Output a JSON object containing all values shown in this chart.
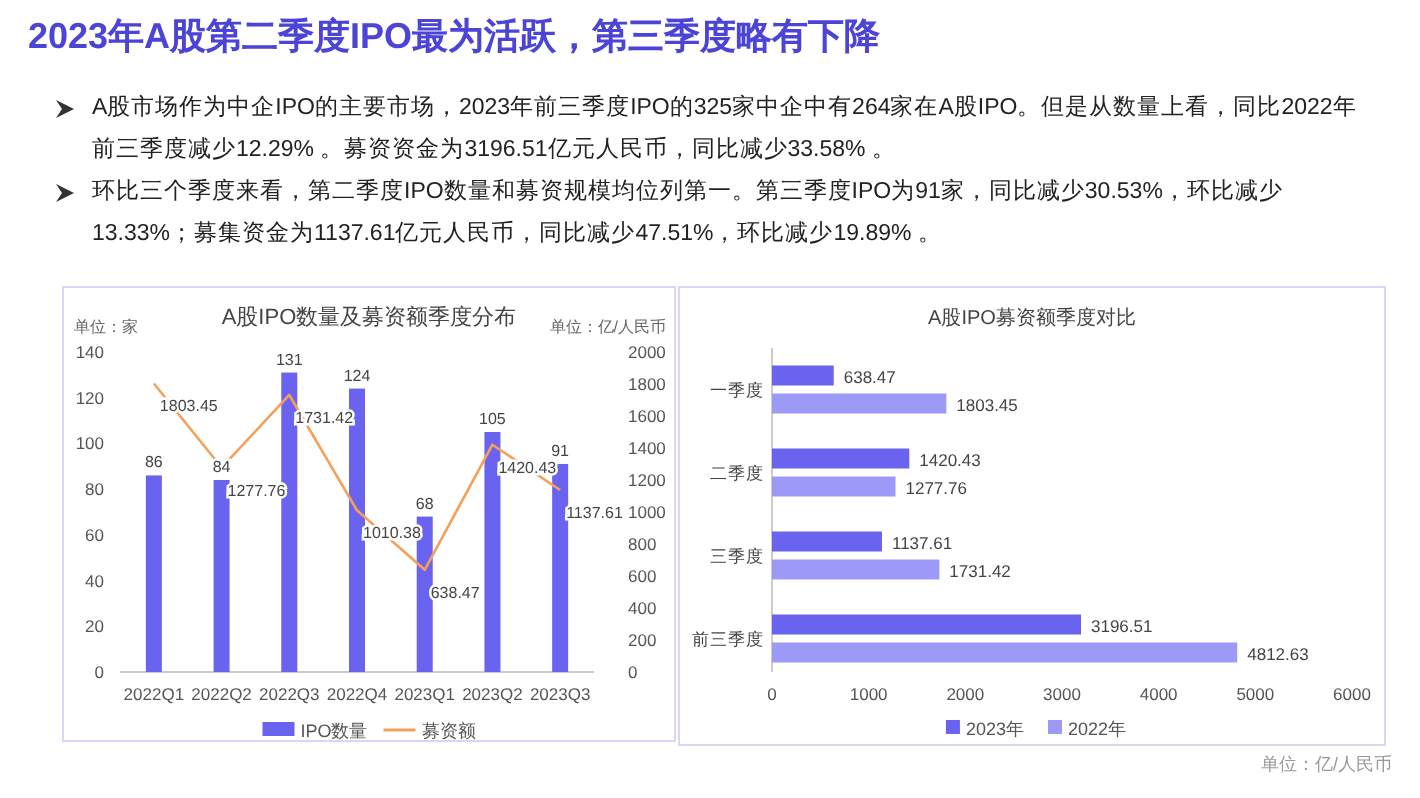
{
  "chart_data": [
    {
      "type": "other",
      "title": "2023年A股第二季度IPO最为活跃，第三季度略有下降",
      "annotations": [
        "A股市场作为中企IPO的主要市场，2023年前三季度IPO的325家中企中有264家在A股IPO。但是从数量上看，同比2022年前三季度减少12.29% 。募资资金为3196.51亿元人民币，同比减少33.58% 。",
        "环比三个季度来看，第二季度IPO数量和募资规模均位列第一。第三季度IPO为91家，同比减少30.53%，环比减少13.33%；募集资金为1137.61亿元人民币，同比减少47.51%，环比减少19.89% 。"
      ]
    },
    {
      "type": "bar",
      "title": "A股IPO数量及募资额季度分布",
      "ylabel": "单位：家",
      "y2label": "单位：亿/人民币",
      "categories": [
        "2022Q1",
        "2022Q2",
        "2022Q3",
        "2022Q4",
        "2023Q1",
        "2023Q2",
        "2023Q3"
      ],
      "series": [
        {
          "name": "IPO数量",
          "color": "#6a63f0",
          "values": [
            86,
            84,
            131,
            124,
            68,
            105,
            91
          ]
        },
        {
          "name": "募资额",
          "type": "line",
          "axis": "y2",
          "color": "#f5a05a",
          "values": [
            1803.45,
            1277.76,
            1731.42,
            1010.38,
            638.47,
            1420.43,
            1137.61
          ]
        }
      ],
      "ylim": [
        0,
        140
      ],
      "yticks": [
        0,
        20,
        40,
        60,
        80,
        100,
        120,
        140
      ],
      "y2lim": [
        0,
        2000
      ],
      "y2ticks": [
        0,
        200,
        400,
        600,
        800,
        1000,
        1200,
        1400,
        1600,
        1800,
        2000
      ],
      "data_labels": true,
      "legend": "bottom",
      "grid": false
    },
    {
      "type": "bar",
      "orientation": "horizontal",
      "title": "A股IPO募资额季度对比",
      "categories": [
        "一季度",
        "二季度",
        "三季度",
        "前三季度"
      ],
      "series": [
        {
          "name": "2023年",
          "color": "#6a63f0",
          "values": [
            638.47,
            1420.43,
            1137.61,
            3196.51
          ]
        },
        {
          "name": "2022年",
          "color": "#9d99f7",
          "values": [
            1803.45,
            1277.76,
            1731.42,
            4812.63
          ]
        }
      ],
      "xlim": [
        0,
        6000
      ],
      "xticks": [
        0,
        1000,
        2000,
        3000,
        4000,
        5000,
        6000
      ],
      "data_labels": true,
      "legend": "bottom",
      "grid": false,
      "annotations": [
        "单位：亿/人民币"
      ]
    }
  ]
}
